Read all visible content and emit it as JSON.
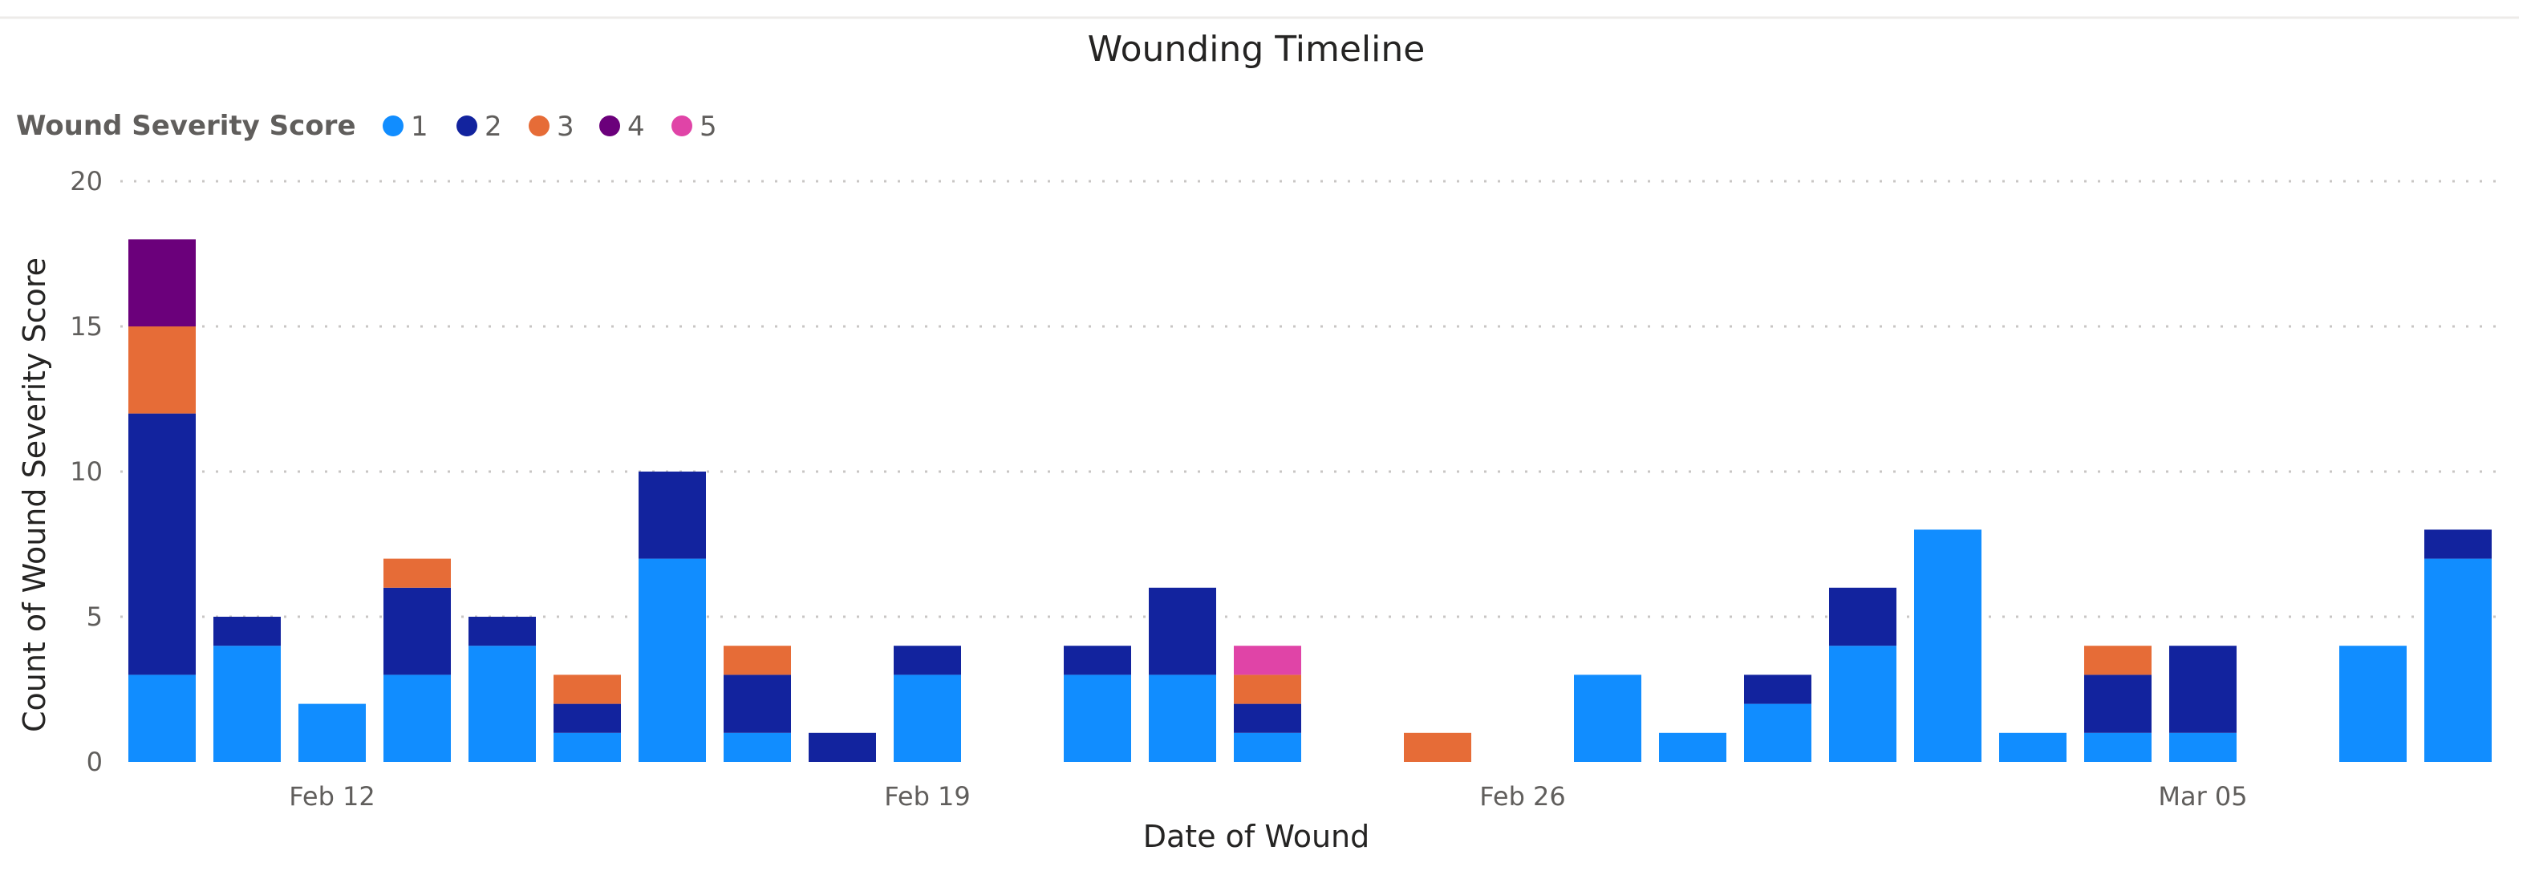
{
  "chart_data": {
    "type": "bar",
    "stacked": true,
    "title": "Wounding Timeline",
    "xlabel": "Date of Wound",
    "ylabel": "Count of Wound Severity Score",
    "ylim": [
      0,
      20
    ],
    "yticks": [
      0,
      5,
      10,
      15,
      20
    ],
    "grid": true,
    "legend": {
      "title": "Wound Severity Score",
      "placement": "top-left"
    },
    "x_tick_labels": [
      {
        "label": "Feb 12",
        "date": "Feb 12"
      },
      {
        "label": "Feb 19",
        "date": "Feb 19"
      },
      {
        "label": "Feb 26",
        "date": "Feb 26"
      },
      {
        "label": "Mar 05",
        "date": "Mar 05"
      }
    ],
    "categories": [
      "Feb 10",
      "Feb 11",
      "Feb 12",
      "Feb 13",
      "Feb 14",
      "Feb 15",
      "Feb 16",
      "Feb 17",
      "Feb 18",
      "Feb 19",
      "Feb 20",
      "Feb 21",
      "Feb 22",
      "Feb 23",
      "Feb 24",
      "Feb 25",
      "Feb 26",
      "Feb 27",
      "Feb 28",
      "Feb 29",
      "Mar 01",
      "Mar 02",
      "Mar 03",
      "Mar 04",
      "Mar 05",
      "Mar 06",
      "Mar 07",
      "Mar 08",
      "Mar 09"
    ],
    "series": [
      {
        "name": "1",
        "color": "#118DFF",
        "values": [
          3,
          4,
          2,
          3,
          4,
          1,
          7,
          1,
          0,
          3,
          0,
          3,
          3,
          1,
          0,
          0,
          0,
          3,
          1,
          2,
          4,
          8,
          1,
          1,
          1,
          0,
          4,
          7,
          0
        ]
      },
      {
        "name": "2",
        "color": "#12239E",
        "values": [
          9,
          1,
          0,
          3,
          1,
          1,
          3,
          2,
          1,
          1,
          0,
          1,
          3,
          1,
          0,
          0,
          0,
          0,
          0,
          1,
          2,
          0,
          0,
          2,
          3,
          0,
          0,
          1,
          0
        ]
      },
      {
        "name": "3",
        "color": "#E66C37",
        "values": [
          3,
          0,
          0,
          1,
          0,
          1,
          0,
          1,
          0,
          0,
          0,
          0,
          0,
          1,
          0,
          1,
          0,
          0,
          0,
          0,
          0,
          0,
          0,
          1,
          0,
          0,
          0,
          0,
          0
        ]
      },
      {
        "name": "4",
        "color": "#6B007B",
        "values": [
          3,
          0,
          0,
          0,
          0,
          0,
          0,
          0,
          0,
          0,
          0,
          0,
          0,
          0,
          0,
          0,
          0,
          0,
          0,
          0,
          0,
          0,
          0,
          0,
          0,
          0,
          0,
          0,
          0
        ]
      },
      {
        "name": "5",
        "color": "#E044A7",
        "values": [
          0,
          0,
          0,
          0,
          0,
          0,
          0,
          0,
          0,
          0,
          0,
          0,
          0,
          1,
          0,
          0,
          0,
          0,
          0,
          0,
          0,
          0,
          0,
          0,
          0,
          0,
          0,
          0,
          0
        ]
      }
    ]
  }
}
